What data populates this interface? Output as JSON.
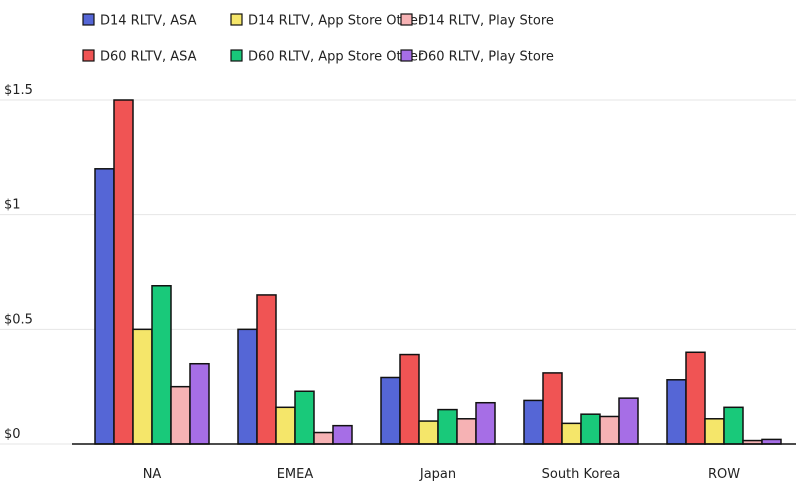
{
  "chart_data": {
    "type": "bar",
    "title": "",
    "xlabel": "",
    "ylabel": "",
    "ylim": [
      0,
      1.5
    ],
    "y_ticks": [
      {
        "value": 0,
        "label": "$0"
      },
      {
        "value": 0.5,
        "label": "$0.5"
      },
      {
        "value": 1,
        "label": "$1"
      },
      {
        "value": 1.5,
        "label": "$1.5"
      }
    ],
    "grid": "horizontal",
    "legend_position": "top-left",
    "categories": [
      "NA",
      "EMEA",
      "Japan",
      "South Korea",
      "ROW"
    ],
    "series": [
      {
        "name": "D14 RLTV, ASA",
        "color": "#5566d6",
        "values": [
          1.2,
          0.5,
          0.29,
          0.19,
          0.28
        ]
      },
      {
        "name": "D60 RLTV, ASA",
        "color": "#f05454",
        "values": [
          1.5,
          0.65,
          0.39,
          0.31,
          0.4
        ]
      },
      {
        "name": "D14 RLTV, App Store Other",
        "color": "#f5e66a",
        "values": [
          0.5,
          0.16,
          0.1,
          0.09,
          0.11
        ]
      },
      {
        "name": "D60 RLTV, App Store Other",
        "color": "#19c97a",
        "values": [
          0.69,
          0.23,
          0.15,
          0.13,
          0.16
        ]
      },
      {
        "name": "D14 RLTV, Play Store",
        "color": "#f6b2b4",
        "values": [
          0.25,
          0.05,
          0.11,
          0.12,
          0.015
        ]
      },
      {
        "name": "D60 RLTV, Play Store",
        "color": "#a66ee6",
        "values": [
          0.35,
          0.08,
          0.18,
          0.2,
          0.02
        ]
      }
    ]
  }
}
